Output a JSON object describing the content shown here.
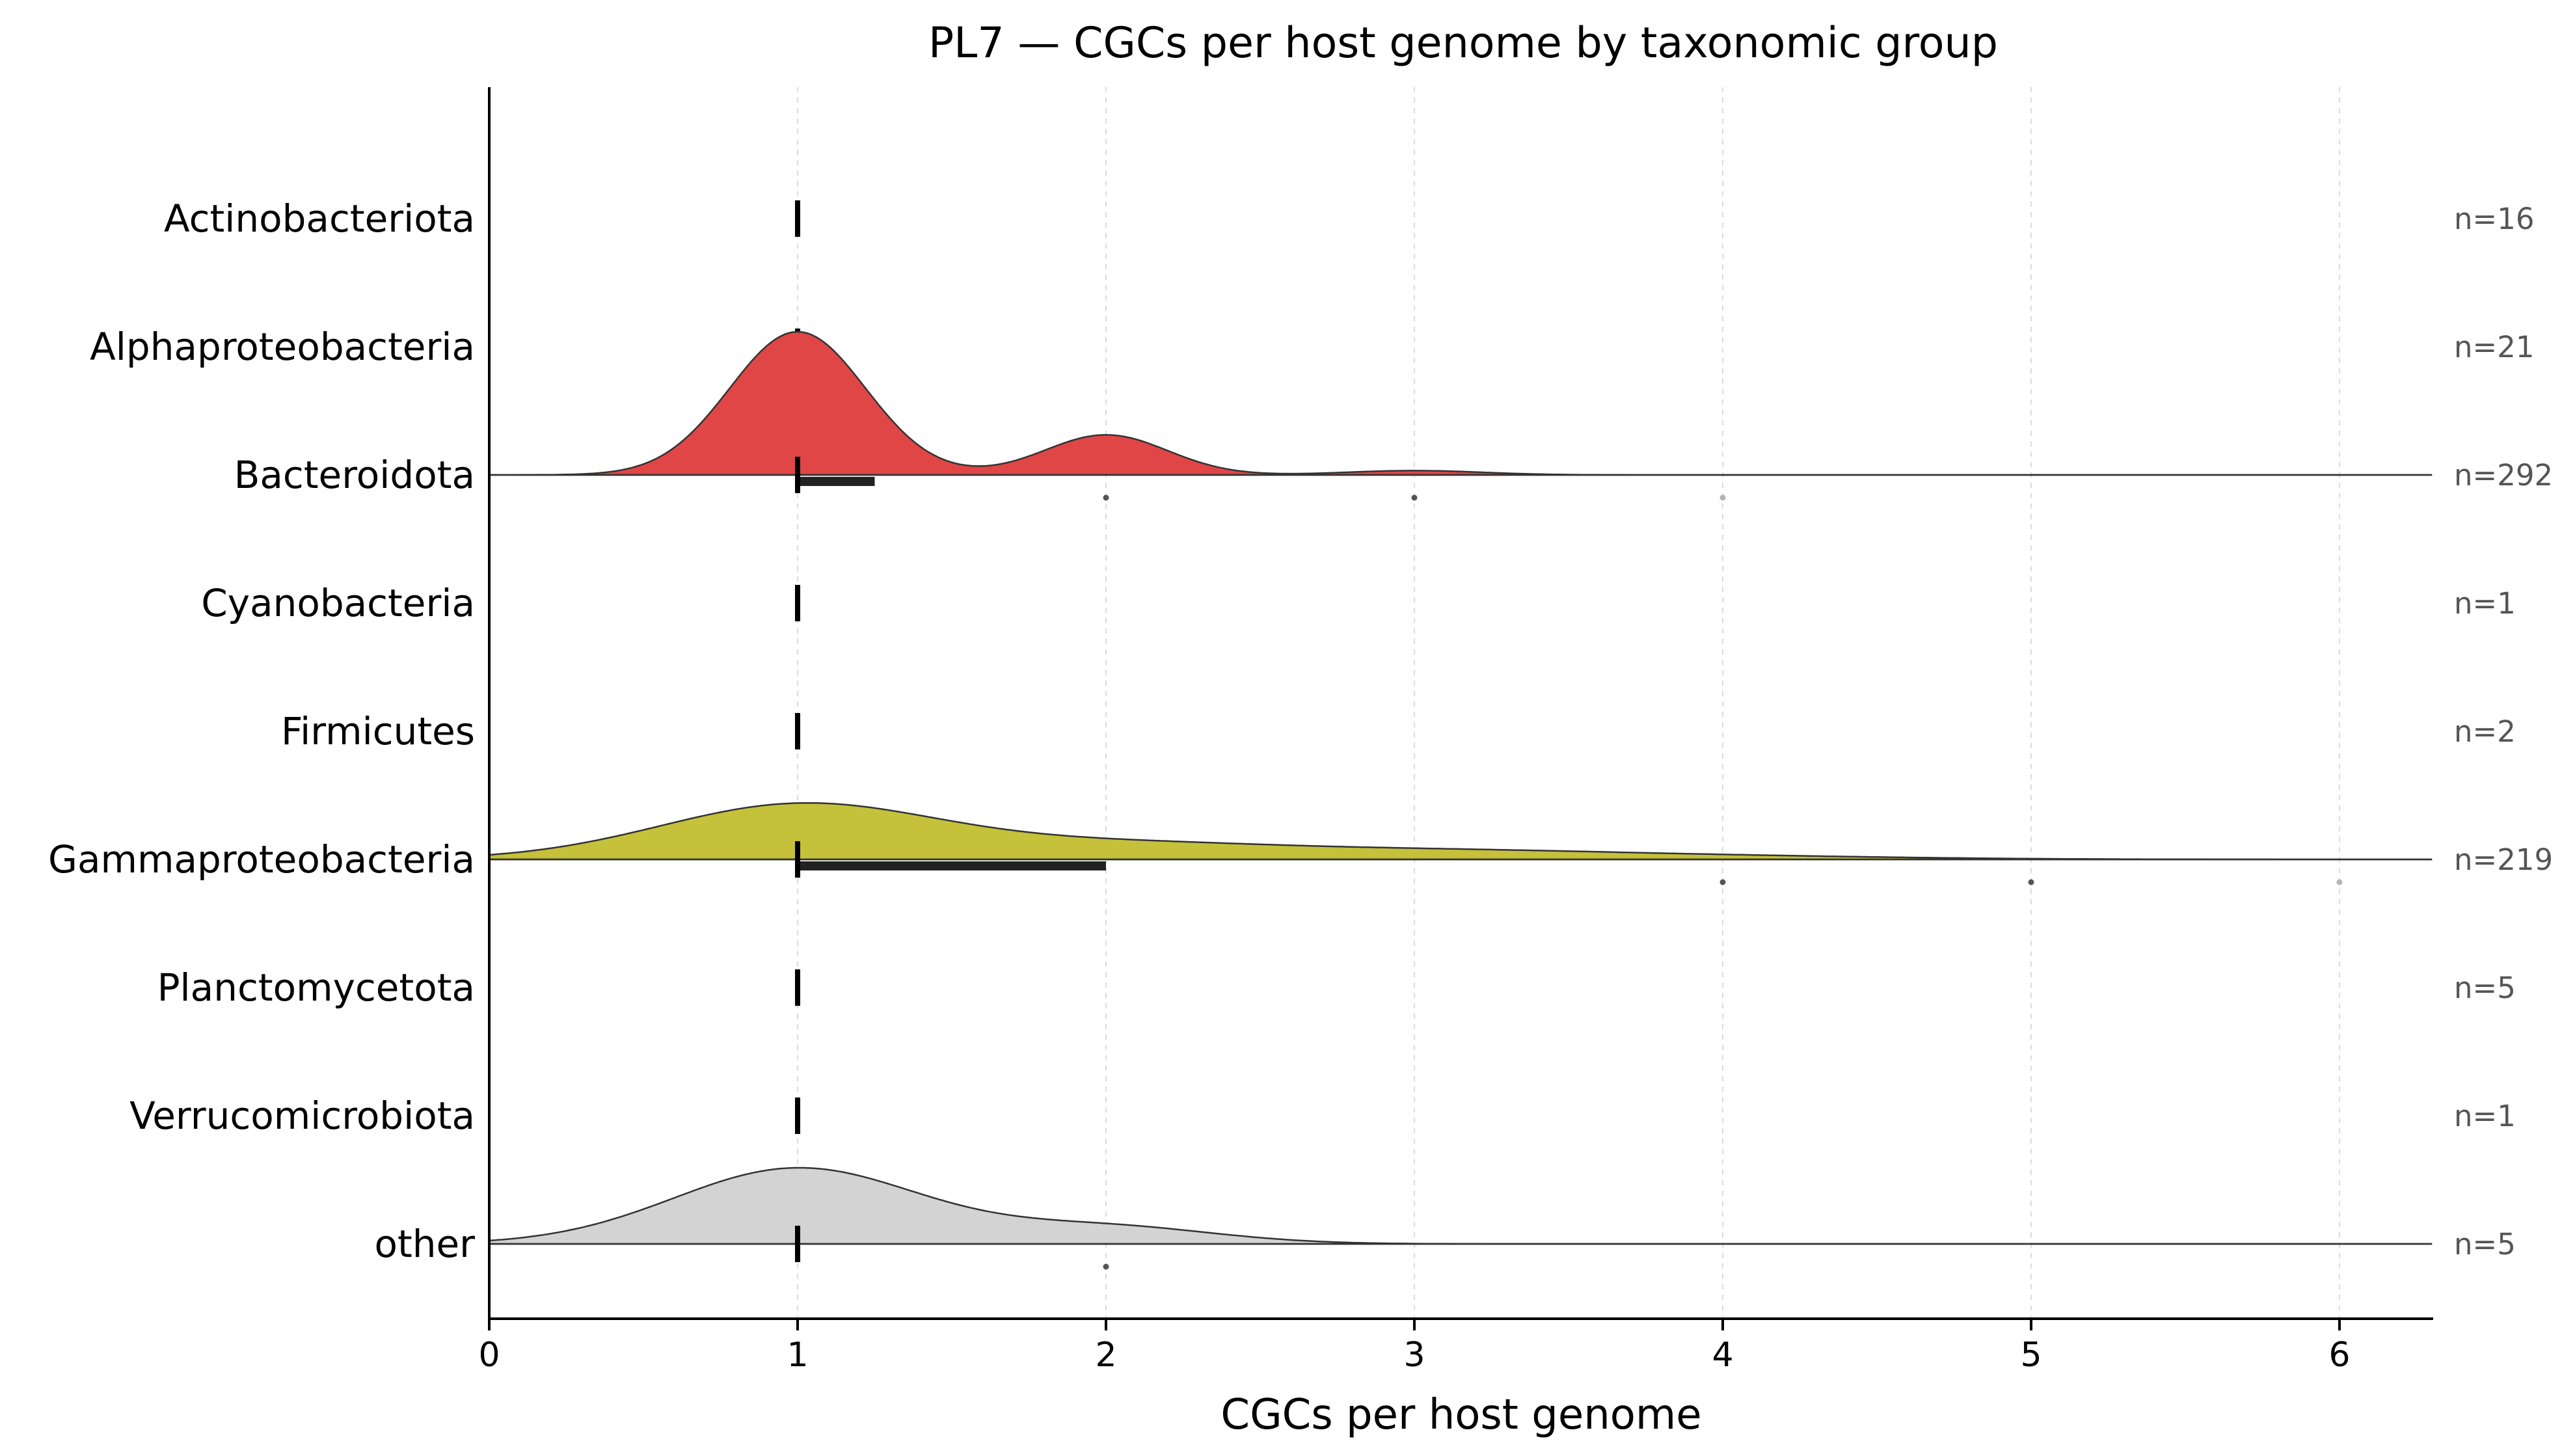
{
  "chart_data": {
    "type": "ridgeline",
    "title": "PL7 — CGCs per host genome by taxonomic group",
    "xlabel": "CGCs per host genome",
    "ylabel": "",
    "xlim": [
      0,
      6.3
    ],
    "xticks": [
      0,
      1,
      2,
      3,
      4,
      5,
      6
    ],
    "grid": "x-dashed",
    "groups": [
      {
        "name": "Actinobacteriota",
        "n_label": "n=16",
        "n": 16,
        "color": null,
        "median": 1,
        "iqr": [
          1,
          1
        ],
        "outliers": [],
        "density": []
      },
      {
        "name": "Alphaproteobacteria",
        "n_label": "n=21",
        "n": 21,
        "color": null,
        "median": 1,
        "iqr": [
          1,
          1
        ],
        "outliers": [],
        "density": []
      },
      {
        "name": "Bacteroidota",
        "n_label": "n=292",
        "n": 292,
        "color": "#e04646",
        "median": 1,
        "iqr": [
          1,
          1.25
        ],
        "outliers": [
          2,
          3,
          4
        ],
        "density": [
          [
            1,
            1.0,
            0.22
          ],
          [
            2,
            0.28,
            0.2
          ],
          [
            3,
            0.03,
            0.22
          ]
        ]
      },
      {
        "name": "Cyanobacteria",
        "n_label": "n=1",
        "n": 1,
        "color": null,
        "median": 1,
        "iqr": [
          1,
          1
        ],
        "outliers": [],
        "density": []
      },
      {
        "name": "Firmicutes",
        "n_label": "n=2",
        "n": 2,
        "color": null,
        "median": 1,
        "iqr": [
          1,
          1
        ],
        "outliers": [],
        "density": []
      },
      {
        "name": "Gammaproteobacteria",
        "n_label": "n=219",
        "n": 219,
        "color": "#c5c13a",
        "median": 1,
        "iqr": [
          1,
          2
        ],
        "outliers": [
          4,
          5,
          6
        ],
        "density": [
          [
            1,
            0.38,
            0.45
          ],
          [
            2,
            0.1,
            0.5
          ],
          [
            3,
            0.06,
            0.6
          ],
          [
            4,
            0.02,
            0.6
          ]
        ]
      },
      {
        "name": "Planctomycetota",
        "n_label": "n=5",
        "n": 5,
        "color": null,
        "median": 1,
        "iqr": [
          1,
          1
        ],
        "outliers": [],
        "density": []
      },
      {
        "name": "Verrucomicrobiota",
        "n_label": "n=1",
        "n": 1,
        "color": null,
        "median": 1,
        "iqr": [
          1,
          1
        ],
        "outliers": [],
        "density": []
      },
      {
        "name": "other",
        "n_label": "n=5",
        "n": 5,
        "color": "#d3d3d3",
        "median": 1,
        "iqr": [
          1,
          1
        ],
        "outliers": [
          2
        ],
        "density": [
          [
            1,
            0.53,
            0.4
          ],
          [
            2,
            0.12,
            0.35
          ]
        ]
      }
    ]
  }
}
